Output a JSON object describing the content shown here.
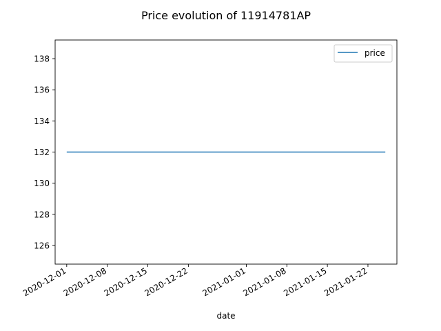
{
  "chart_data": {
    "type": "line",
    "title": "Price evolution of 11914781AP",
    "xlabel": "date",
    "ylabel": "",
    "x_ticks": [
      "2020-12-01",
      "2020-12-08",
      "2020-12-15",
      "2020-12-22",
      "2021-01-01",
      "2021-01-08",
      "2021-01-15",
      "2021-01-22"
    ],
    "y_ticks": [
      126,
      128,
      130,
      132,
      134,
      136,
      138
    ],
    "xlim": [
      "2020-11-29",
      "2021-01-27"
    ],
    "ylim": [
      124.8,
      139.2
    ],
    "grid": false,
    "legend_position": "top-right",
    "series": [
      {
        "name": "price",
        "color": "#1f77b4",
        "points": [
          {
            "x": "2020-12-01",
            "y": 132
          },
          {
            "x": "2021-01-25",
            "y": 132
          }
        ]
      }
    ]
  }
}
